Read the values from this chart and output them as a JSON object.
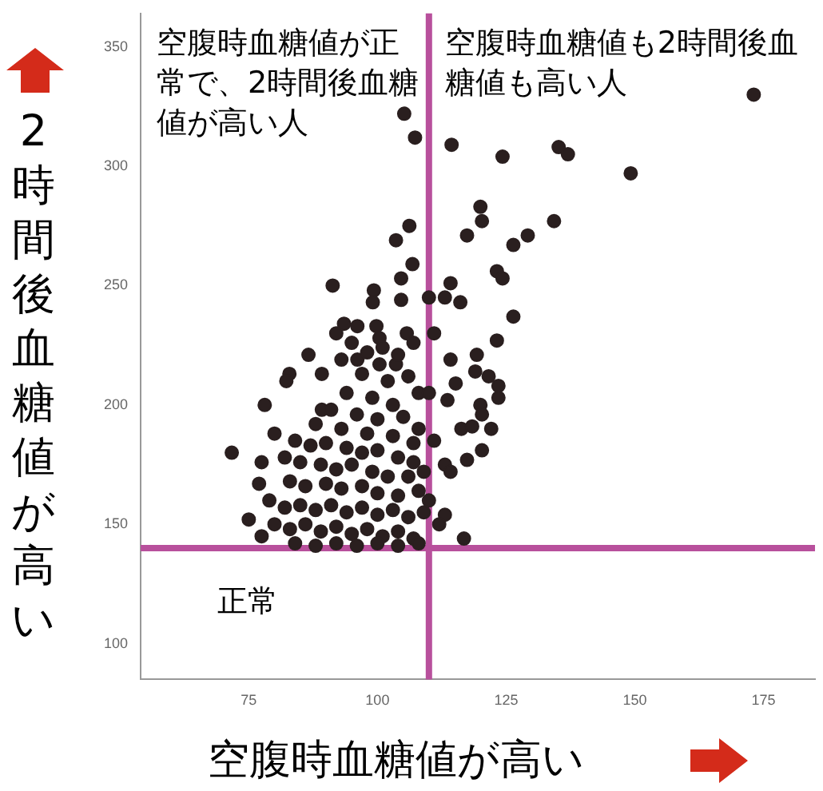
{
  "chart_data": {
    "type": "scatter",
    "xlabel": "空腹時血糖値が高い",
    "ylabel": "2時間後血糖値が高い",
    "xlim": [
      54,
      185
    ],
    "ylim": [
      85,
      364
    ],
    "xticks": [
      75,
      100,
      125,
      150,
      175
    ],
    "yticks": [
      100,
      150,
      200,
      250,
      300,
      350
    ],
    "grid": false,
    "legend": false,
    "marker": "circle",
    "ref_lines": [
      {
        "axis": "x",
        "value": 110,
        "color": "#b8509c"
      },
      {
        "axis": "y",
        "value": 140,
        "color": "#b8509c"
      }
    ],
    "annotations": [
      "空腹時血糖値が正常で、2時間後血糖値が高い人",
      "空腹時血糖値も2時間後血糖値も高い人",
      "正常"
    ],
    "series": [
      {
        "color": "#2a1f1f",
        "x": [
          173.1,
          114.4,
          124.3,
          135.2,
          137,
          149.2,
          120,
          120.3,
          117.4,
          134.3,
          126.4,
          129.2,
          123.2,
          124.3,
          114.2,
          116.1,
          113.1,
          126.4,
          123.2,
          119.3,
          114.2,
          115.2,
          119,
          121.6,
          123.5,
          123.5,
          113.6,
          120,
          120.3,
          116.3,
          118.4,
          122.1,
          117.4,
          120.3,
          113.1,
          114.2,
          113.1,
          116.8,
          105.2,
          107.3,
          106.2,
          103.6,
          104.6,
          106.8,
          91.3,
          99.3,
          99.1,
          104.6,
          93.5,
          96.1,
          99.8,
          100.4,
          105.7,
          86.6,
          96.1,
          100.4,
          103.6,
          82.9,
          89.2,
          82.3,
          78.1,
          89.2,
          71.7,
          77.5,
          77.5,
          92,
          95,
          98,
          101,
          104,
          107,
          93,
          97,
          102,
          106,
          108,
          94,
          99,
          103,
          91,
          96,
          100,
          105,
          108,
          88,
          93,
          98,
          103,
          107,
          80,
          84,
          87,
          90,
          94,
          97,
          100,
          104,
          107,
          82,
          85,
          89,
          92,
          95,
          99,
          102,
          106,
          109,
          83,
          86,
          90,
          93,
          97,
          100,
          104,
          108,
          79,
          82,
          85,
          88,
          91,
          94,
          97,
          100,
          103,
          106,
          109,
          80,
          83,
          86,
          89,
          92,
          95,
          98,
          101,
          104,
          107,
          84,
          88,
          92,
          96,
          100,
          104,
          108,
          75,
          77,
          110,
          111,
          110,
          111,
          112,
          110
        ],
        "values": [
          330,
          309,
          304,
          308,
          305,
          297,
          283,
          277,
          271,
          277,
          267,
          271,
          256,
          253,
          251,
          243,
          245,
          237,
          227,
          221,
          219,
          209,
          214,
          212,
          208,
          203,
          202,
          200,
          196,
          190,
          191,
          190,
          177,
          181,
          175,
          172,
          154,
          144,
          322,
          312,
          275,
          269,
          253,
          259,
          250,
          248,
          243,
          244,
          234,
          233,
          233,
          228,
          230,
          221,
          219,
          217,
          217,
          213,
          213,
          210,
          200,
          198,
          180,
          176,
          145,
          230,
          226,
          222,
          224,
          221,
          226,
          219,
          213,
          210,
          212,
          205,
          205,
          203,
          200,
          198,
          196,
          194,
          195,
          190,
          192,
          190,
          188,
          187,
          184,
          188,
          185,
          183,
          184,
          182,
          180,
          181,
          178,
          176,
          178,
          176,
          175,
          173,
          175,
          172,
          170,
          170,
          172,
          168,
          166,
          167,
          165,
          166,
          163,
          162,
          164,
          160,
          157,
          158,
          156,
          158,
          155,
          157,
          154,
          156,
          153,
          155,
          150,
          148,
          150,
          147,
          149,
          146,
          148,
          145,
          147,
          144,
          142,
          141,
          142,
          141,
          142,
          141,
          142,
          152,
          167,
          160,
          185,
          205,
          230,
          150,
          245
        ]
      }
    ]
  }
}
